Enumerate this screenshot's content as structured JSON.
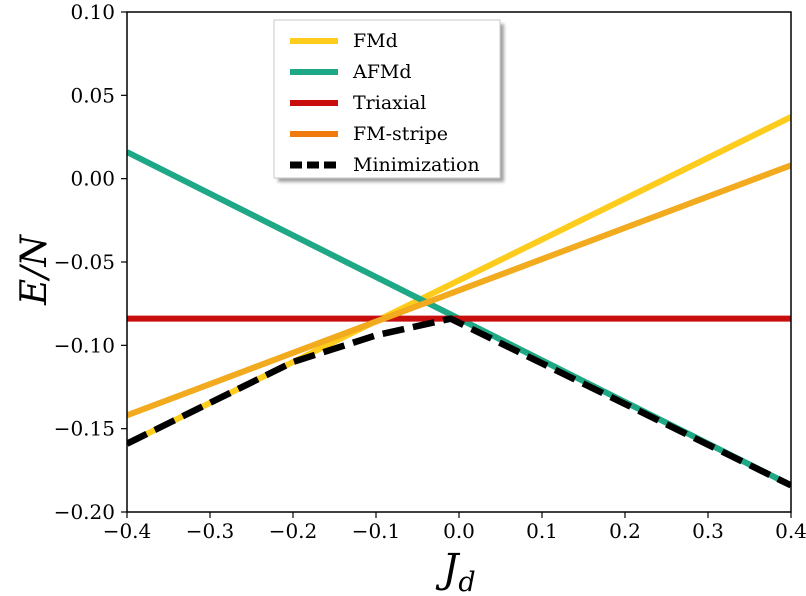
{
  "chart_data": {
    "type": "line",
    "xlabel": "J_d",
    "ylabel": "E/N",
    "xlim": [
      -0.4,
      0.4
    ],
    "ylim": [
      -0.2,
      0.1
    ],
    "xticks": [
      -0.4,
      -0.3,
      -0.2,
      -0.1,
      0.0,
      0.1,
      0.2,
      0.3,
      0.4
    ],
    "xtick_labels": [
      "−0.4",
      "−0.3",
      "−0.2",
      "−0.1",
      "0.0",
      "0.1",
      "0.2",
      "0.3",
      "0.4"
    ],
    "yticks": [
      -0.2,
      -0.15,
      -0.1,
      -0.05,
      0.0,
      0.05,
      0.1
    ],
    "ytick_labels": [
      "−0.20",
      "−0.15",
      "−0.10",
      "−0.05",
      "0.00",
      "0.05",
      "0.10"
    ],
    "legend_position": "top-center",
    "grid": false,
    "series": [
      {
        "name": "FMd",
        "color": "#fdcc1c",
        "style": "solid",
        "x": [
          -0.4,
          0.4
        ],
        "y": [
          -0.159,
          0.037
        ]
      },
      {
        "name": "AFMd",
        "color": "#1fa886",
        "style": "solid",
        "x": [
          -0.4,
          0.4
        ],
        "y": [
          0.016,
          -0.184
        ]
      },
      {
        "name": "Triaxial",
        "color": "#c80d0d",
        "style": "solid",
        "x": [
          -0.4,
          0.4
        ],
        "y": [
          -0.084,
          -0.084
        ]
      },
      {
        "name": "FM-stripe",
        "color": "#f07a10",
        "line_color": "#f2aa1f",
        "style": "solid",
        "x": [
          -0.4,
          0.4
        ],
        "y": [
          -0.142,
          0.008
        ]
      },
      {
        "name": "Minimization",
        "color": "#000000",
        "style": "dashed",
        "x": [
          -0.4,
          -0.2,
          -0.1,
          -0.01,
          0.4
        ],
        "y": [
          -0.159,
          -0.11,
          -0.094,
          -0.084,
          -0.184
        ]
      }
    ]
  }
}
